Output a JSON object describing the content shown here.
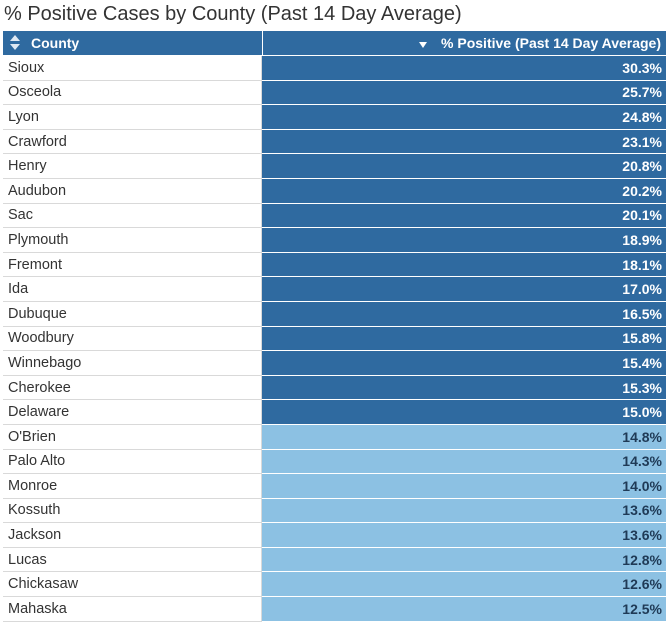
{
  "title": "% Positive Cases by County (Past 14 Day Average)",
  "colors": {
    "header_bg": "#2f6aa0",
    "high_fill": "#2f6aa0",
    "low_fill": "#8cc1e3",
    "threshold": 15.0
  },
  "header": {
    "county_label": "County",
    "value_label": "% Positive (Past 14 Day Average)",
    "sort_icon": "sort-both-icon",
    "desc_icon": "sort-descending-icon"
  },
  "chart_data": {
    "type": "table",
    "title": "% Positive Cases by County (Past 14 Day Average)",
    "columns": [
      "County",
      "% Positive (Past 14 Day Average)"
    ],
    "categories": [
      "Sioux",
      "Osceola",
      "Lyon",
      "Crawford",
      "Henry",
      "Audubon",
      "Sac",
      "Plymouth",
      "Fremont",
      "Ida",
      "Dubuque",
      "Woodbury",
      "Winnebago",
      "Cherokee",
      "Delaware",
      "O'Brien",
      "Palo Alto",
      "Monroe",
      "Kossuth",
      "Jackson",
      "Lucas",
      "Chickasaw",
      "Mahaska"
    ],
    "values": [
      30.3,
      25.7,
      24.8,
      23.1,
      20.8,
      20.2,
      20.1,
      18.9,
      18.1,
      17.0,
      16.5,
      15.8,
      15.4,
      15.3,
      15.0,
      14.8,
      14.3,
      14.0,
      13.6,
      13.6,
      12.8,
      12.6,
      12.5
    ],
    "labels": [
      "30.3%",
      "25.7%",
      "24.8%",
      "23.1%",
      "20.8%",
      "20.2%",
      "20.1%",
      "18.9%",
      "18.1%",
      "17.0%",
      "16.5%",
      "15.8%",
      "15.4%",
      "15.3%",
      "15.0%",
      "14.8%",
      "14.3%",
      "14.0%",
      "13.6%",
      "13.6%",
      "12.8%",
      "12.6%",
      "12.5%"
    ]
  }
}
